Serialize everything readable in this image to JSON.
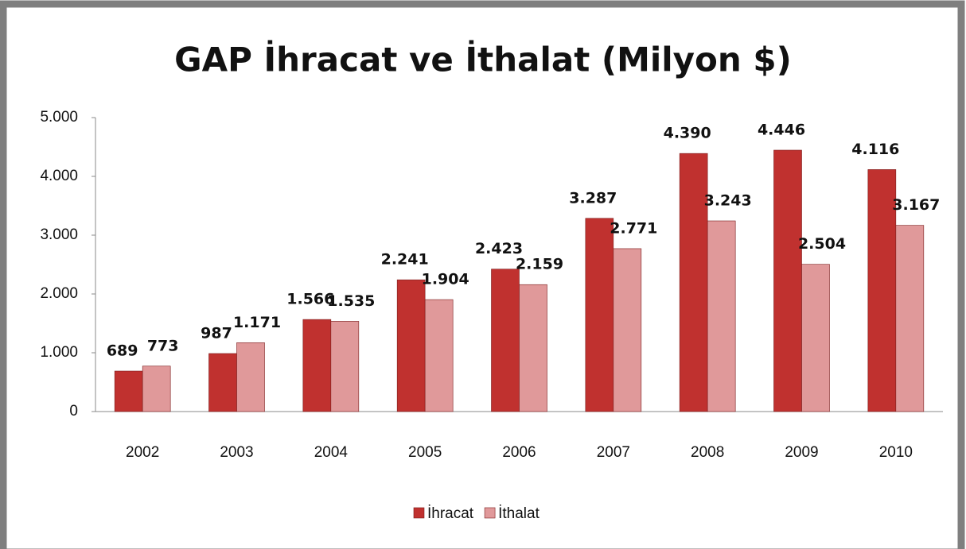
{
  "chart_data": {
    "type": "bar",
    "title": "GAP İhracat ve İthalat (Milyon $)",
    "categories": [
      "2002",
      "2003",
      "2004",
      "2005",
      "2006",
      "2007",
      "2008",
      "2009",
      "2010"
    ],
    "series": [
      {
        "name": "İhracat",
        "color": "#c0312f",
        "values": [
          689,
          987,
          1566,
          2241,
          2423,
          3287,
          4390,
          4446,
          4116
        ],
        "value_labels": [
          "689",
          "987",
          "1.566",
          "2.241",
          "2.423",
          "3.287",
          "4.390",
          "4.446",
          "4.116"
        ]
      },
      {
        "name": "İthalat",
        "color": "#e0999a",
        "values": [
          773,
          1171,
          1535,
          1904,
          2159,
          2771,
          3243,
          2504,
          3167
        ],
        "value_labels": [
          "773",
          "1.171",
          "1.535",
          "1.904",
          "2.159",
          "2.771",
          "3.243",
          "2.504",
          "3.167"
        ]
      }
    ],
    "ylim": [
      0,
      5000
    ],
    "yticks": [
      0,
      {
        "value": 1000,
        "label": "1.000"
      },
      {
        "value": 2000,
        "label": "2.000"
      },
      {
        "value": 3000,
        "label": "3.000"
      },
      {
        "value": 4000,
        "label": "4.000"
      },
      {
        "value": 5000,
        "label": "5.000"
      }
    ],
    "legend": "bottom"
  }
}
